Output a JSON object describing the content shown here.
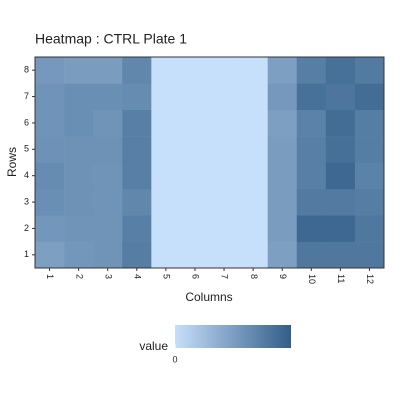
{
  "chart_data": {
    "type": "heatmap",
    "title": "Heatmap : CTRL Plate 1",
    "x_label": "Columns",
    "y_label": "Rows",
    "x_categories": [
      1,
      2,
      3,
      4,
      5,
      6,
      7,
      8,
      9,
      10,
      11,
      12
    ],
    "y_categories": [
      1,
      2,
      3,
      4,
      5,
      6,
      7,
      8
    ],
    "values": [
      [
        50,
        56,
        58,
        76,
        0,
        0,
        0,
        0,
        50,
        80,
        80,
        80
      ],
      [
        56,
        58,
        58,
        74,
        0,
        0,
        0,
        0,
        52,
        92,
        92,
        80
      ],
      [
        62,
        60,
        58,
        68,
        0,
        0,
        0,
        0,
        52,
        78,
        78,
        76
      ],
      [
        64,
        60,
        58,
        74,
        0,
        0,
        0,
        0,
        52,
        74,
        92,
        72
      ],
      [
        60,
        60,
        60,
        74,
        0,
        0,
        0,
        0,
        52,
        74,
        86,
        76
      ],
      [
        58,
        62,
        58,
        74,
        0,
        0,
        0,
        0,
        50,
        72,
        88,
        76
      ],
      [
        58,
        62,
        62,
        64,
        0,
        0,
        0,
        0,
        55,
        85,
        82,
        88
      ],
      [
        55,
        52,
        52,
        68,
        0,
        0,
        0,
        0,
        50,
        75,
        85,
        78
      ]
    ],
    "color_low": "#c6dffb",
    "color_high": "#325e88",
    "colorbar": {
      "title": "value",
      "lim": [
        0,
        100
      ],
      "ticks": [
        0
      ]
    }
  }
}
